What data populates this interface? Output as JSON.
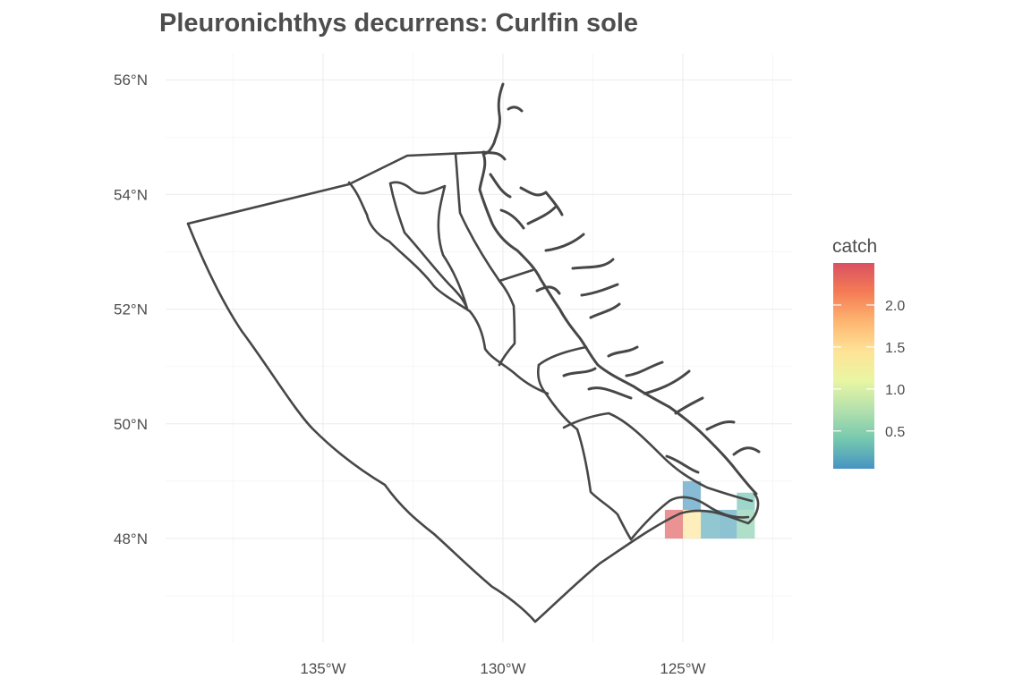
{
  "title": "Pleuronichthys decurrens: Curlfin sole",
  "chart_data": {
    "type": "heatmap",
    "title": "Pleuronichthys decurrens: Curlfin sole",
    "x_ticks": [
      {
        "lon": -135,
        "label": "135°W"
      },
      {
        "lon": -130,
        "label": "130°W"
      },
      {
        "lon": -125,
        "label": "125°W"
      }
    ],
    "y_ticks": [
      {
        "lat": 48,
        "label": "48°N"
      },
      {
        "lat": 50,
        "label": "50°N"
      },
      {
        "lat": 52,
        "label": "52°N"
      },
      {
        "lat": 54,
        "label": "54°N"
      },
      {
        "lat": 56,
        "label": "56°N"
      }
    ],
    "xlim": [
      -139.5,
      -122
    ],
    "ylim": [
      46.3,
      56.4
    ],
    "grid": true,
    "legend": {
      "title": "catch",
      "position": "right",
      "range": [
        0.05,
        2.5
      ],
      "ticks": [
        {
          "value": 0.5,
          "label": "0.5"
        },
        {
          "value": 1.0,
          "label": "1.0"
        },
        {
          "value": 1.5,
          "label": "1.5"
        },
        {
          "value": 2.0,
          "label": "2.0"
        }
      ],
      "colors": [
        "#3288bd",
        "#66c2a5",
        "#abdda4",
        "#e6f598",
        "#fee08b",
        "#fdae61",
        "#f46d43",
        "#d53e4f"
      ]
    },
    "cells": [
      {
        "lon": [
          -125.5,
          -125.0
        ],
        "lat": [
          48.0,
          48.5
        ],
        "catch": 2.4
      },
      {
        "lon": [
          -125.0,
          -124.5
        ],
        "lat": [
          48.0,
          48.5
        ],
        "catch": 1.4
      },
      {
        "lon": [
          -125.0,
          -124.5
        ],
        "lat": [
          48.5,
          49.0
        ],
        "catch": 0.1
      },
      {
        "lon": [
          -124.5,
          -124.0
        ],
        "lat": [
          48.0,
          48.5
        ],
        "catch": 0.2
      },
      {
        "lon": [
          -124.0,
          -123.5
        ],
        "lat": [
          48.0,
          48.5
        ],
        "catch": 0.15
      },
      {
        "lon": [
          -123.5,
          -123.0
        ],
        "lat": [
          48.0,
          48.5
        ],
        "catch": 0.5
      },
      {
        "lon": [
          -123.5,
          -123.0
        ],
        "lat": [
          48.5,
          48.8
        ],
        "catch": 0.35
      }
    ]
  }
}
